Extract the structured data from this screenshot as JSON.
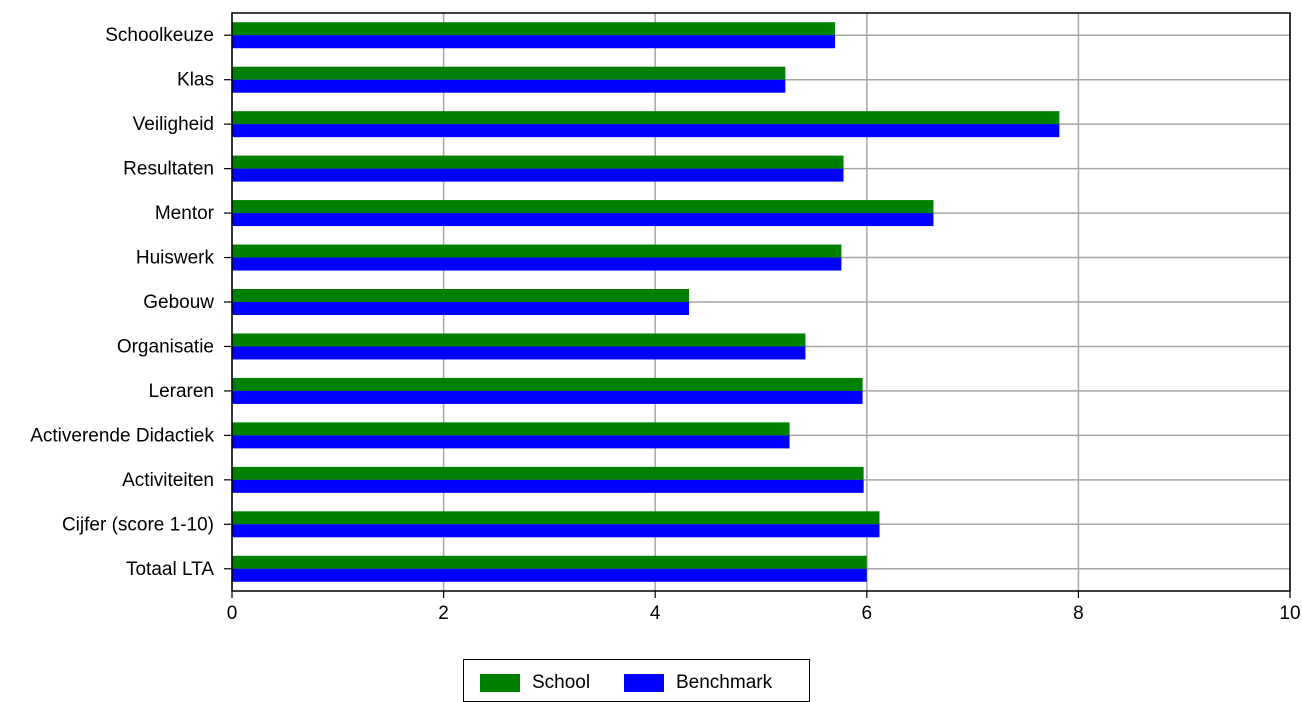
{
  "chart_data": {
    "type": "bar",
    "orientation": "horizontal",
    "title": "",
    "xlabel": "",
    "ylabel": "",
    "categories": [
      "Schoolkeuze",
      "Klas",
      "Veiligheid",
      "Resultaten",
      "Mentor",
      "Huiswerk",
      "Gebouw",
      "Organisatie",
      "Leraren",
      "Activerende Didactiek",
      "Activiteiten",
      "Cijfer (score 1-10)",
      "Totaal LTA"
    ],
    "series": [
      {
        "name": "School",
        "color": "#008000",
        "values": [
          5.7,
          5.23,
          7.82,
          5.78,
          6.63,
          5.76,
          4.32,
          5.42,
          5.96,
          5.27,
          5.97,
          6.12,
          6.0
        ]
      },
      {
        "name": "Benchmark",
        "color": "#0000FF",
        "values": [
          5.7,
          5.23,
          7.82,
          5.78,
          6.63,
          5.76,
          4.32,
          5.42,
          5.96,
          5.27,
          5.97,
          6.12,
          6.0
        ]
      }
    ],
    "xlim": [
      0,
      10
    ],
    "xticks": [
      "0",
      "2",
      "4",
      "6",
      "8",
      "10"
    ],
    "grid": true,
    "legend_position": "bottom-center"
  }
}
